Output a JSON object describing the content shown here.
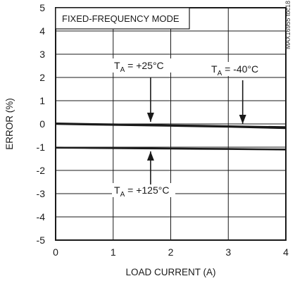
{
  "chart_data": {
    "type": "line",
    "mode_label": "FIXED-FREQUENCY MODE",
    "xlabel": "LOAD CURRENT (A)",
    "ylabel": "ERROR (%)",
    "xlim": [
      0,
      4
    ],
    "ylim": [
      -5,
      5
    ],
    "x_ticks": [
      "0",
      "1",
      "2",
      "3",
      "4"
    ],
    "y_ticks": [
      "5",
      "4",
      "3",
      "2",
      "1",
      "0",
      "-1",
      "-2",
      "-3",
      "-4",
      "-5"
    ],
    "grid": true,
    "watermark": "MAX16955 toc18",
    "series": [
      {
        "x": [
          0,
          0.5,
          1,
          1.5,
          2,
          2.5,
          3,
          3.5,
          4
        ],
        "y": [
          0.02,
          0.0,
          -0.02,
          -0.04,
          -0.06,
          -0.08,
          -0.1,
          -0.12,
          -0.14
        ]
      },
      {
        "x": [
          0,
          0.5,
          1,
          1.5,
          2,
          2.5,
          3,
          3.5,
          4
        ],
        "y": [
          0.0,
          -0.02,
          -0.04,
          -0.06,
          -0.08,
          -0.1,
          -0.12,
          -0.15,
          -0.18
        ]
      },
      {
        "x": [
          0,
          0.5,
          1,
          1.5,
          2,
          2.5,
          3,
          3.5,
          4
        ],
        "y": [
          -1.02,
          -1.03,
          -1.04,
          -1.05,
          -1.06,
          -1.07,
          -1.08,
          -1.09,
          -1.1
        ]
      }
    ],
    "annotations": [
      {
        "prefix": "T",
        "sub": "A",
        "text": " = +25°C",
        "target_x": 1.65,
        "target_y": -0.03,
        "arrow": "down"
      },
      {
        "prefix": "T",
        "sub": "A",
        "text": " = -40°C",
        "target_x": 3.25,
        "target_y": -0.12,
        "arrow": "down"
      },
      {
        "prefix": "T",
        "sub": "A",
        "text": " = +125°C",
        "target_x": 1.65,
        "target_y": -1.06,
        "arrow": "up"
      }
    ]
  }
}
